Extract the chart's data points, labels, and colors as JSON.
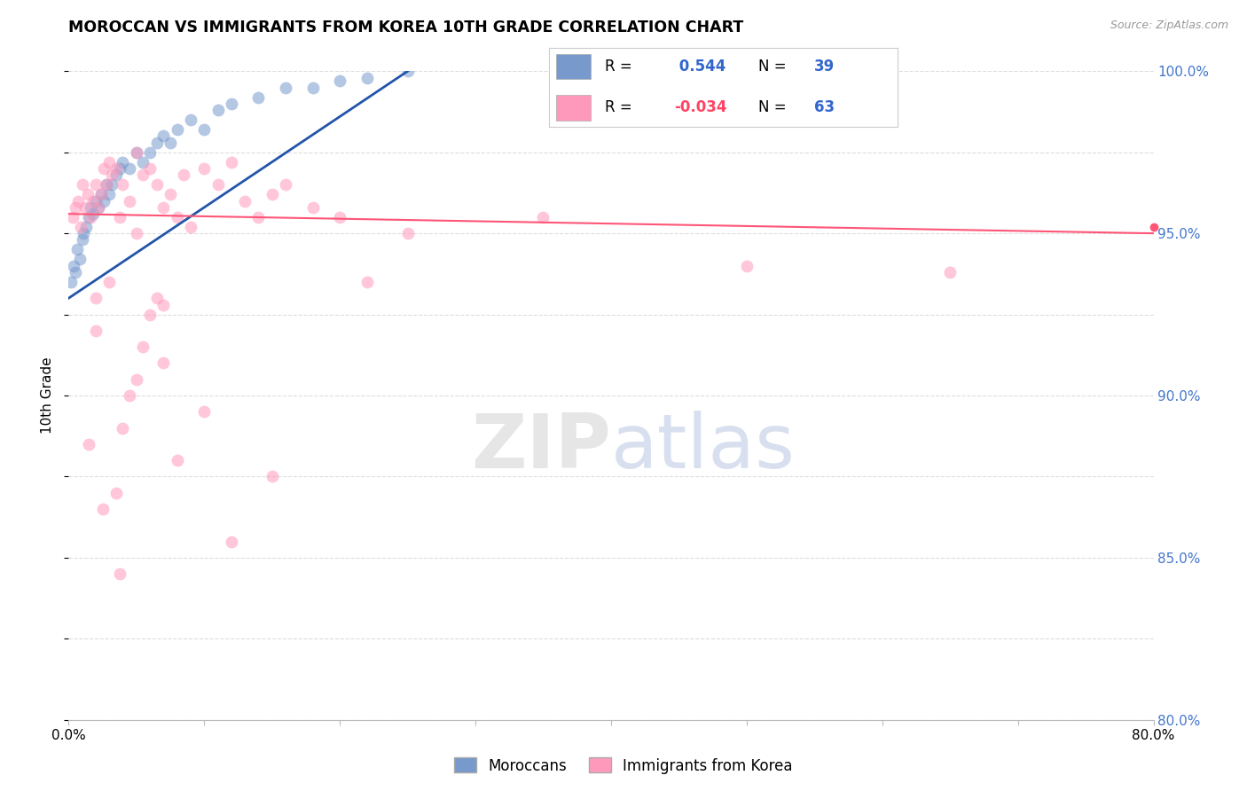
{
  "title": "MOROCCAN VS IMMIGRANTS FROM KOREA 10TH GRADE CORRELATION CHART",
  "source": "Source: ZipAtlas.com",
  "ylabel": "10th Grade",
  "xlim": [
    0.0,
    80.0
  ],
  "ylim": [
    80.0,
    100.0
  ],
  "x_tick_positions": [
    0,
    10,
    20,
    30,
    40,
    50,
    60,
    70,
    80
  ],
  "x_tick_labels": [
    "0.0%",
    "",
    "",
    "",
    "",
    "",
    "",
    "",
    "80.0%"
  ],
  "y_ticks": [
    80.0,
    85.0,
    90.0,
    95.0,
    100.0
  ],
  "y_tick_labels": [
    "80.0%",
    "85.0%",
    "90.0%",
    "95.0%",
    "100.0%"
  ],
  "background_color": "#ffffff",
  "grid_color": "#dddddd",
  "blue_color": "#7799cc",
  "pink_color": "#ff99bb",
  "blue_line_color": "#2255aa",
  "pink_line_color": "#ff5577",
  "blue_R": 0.544,
  "blue_N": 39,
  "pink_R": -0.034,
  "pink_N": 63,
  "blue_scatter_x": [
    0.2,
    0.4,
    0.5,
    0.6,
    0.8,
    1.0,
    1.1,
    1.3,
    1.5,
    1.6,
    1.8,
    2.0,
    2.2,
    2.4,
    2.6,
    2.8,
    3.0,
    3.2,
    3.5,
    3.8,
    4.0,
    4.5,
    5.0,
    5.5,
    6.0,
    6.5,
    7.0,
    7.5,
    8.0,
    9.0,
    10.0,
    11.0,
    12.0,
    14.0,
    16.0,
    18.0,
    20.0,
    22.0,
    25.0
  ],
  "blue_scatter_y": [
    93.5,
    94.0,
    93.8,
    94.5,
    94.2,
    94.8,
    95.0,
    95.2,
    95.5,
    95.8,
    95.6,
    96.0,
    95.8,
    96.2,
    96.0,
    96.5,
    96.2,
    96.5,
    96.8,
    97.0,
    97.2,
    97.0,
    97.5,
    97.2,
    97.5,
    97.8,
    98.0,
    97.8,
    98.2,
    98.5,
    98.2,
    98.8,
    99.0,
    99.2,
    99.5,
    99.5,
    99.7,
    99.8,
    100.0
  ],
  "pink_scatter_x": [
    0.3,
    0.5,
    0.7,
    0.9,
    1.0,
    1.2,
    1.4,
    1.6,
    1.8,
    2.0,
    2.2,
    2.4,
    2.6,
    2.8,
    3.0,
    3.2,
    3.5,
    3.8,
    4.0,
    4.5,
    5.0,
    5.5,
    6.0,
    6.5,
    7.0,
    7.5,
    8.0,
    8.5,
    9.0,
    10.0,
    11.0,
    12.0,
    13.0,
    14.0,
    15.0,
    16.0,
    18.0,
    20.0,
    22.0,
    25.0,
    5.0,
    7.0,
    3.0,
    2.0,
    1.5,
    4.0,
    6.0,
    3.5,
    5.5,
    2.5,
    4.5,
    3.8,
    6.5,
    8.0,
    10.0,
    12.0,
    15.0,
    5.0,
    2.0,
    7.0,
    35.0,
    50.0,
    65.0
  ],
  "pink_scatter_y": [
    95.5,
    95.8,
    96.0,
    95.2,
    96.5,
    95.8,
    96.2,
    95.5,
    96.0,
    96.5,
    95.8,
    96.2,
    97.0,
    96.5,
    97.2,
    96.8,
    97.0,
    95.5,
    96.5,
    96.0,
    97.5,
    96.8,
    97.0,
    96.5,
    95.8,
    96.2,
    95.5,
    96.8,
    95.2,
    97.0,
    96.5,
    97.2,
    96.0,
    95.5,
    96.2,
    96.5,
    95.8,
    95.5,
    93.5,
    95.0,
    90.5,
    91.0,
    93.5,
    92.0,
    88.5,
    89.0,
    92.5,
    87.0,
    91.5,
    86.5,
    90.0,
    84.5,
    93.0,
    88.0,
    89.5,
    85.5,
    87.5,
    95.0,
    93.0,
    92.8,
    95.5,
    94.0,
    93.8
  ]
}
